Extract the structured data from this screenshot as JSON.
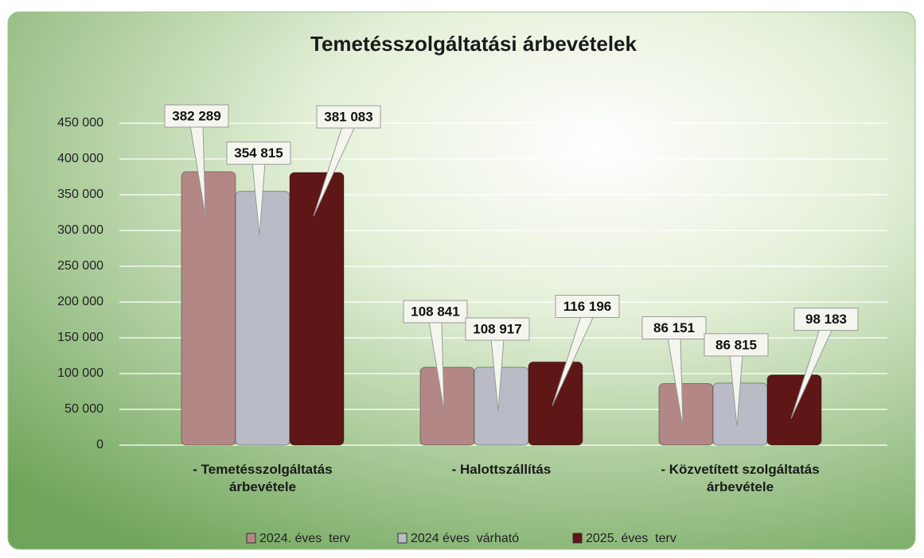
{
  "chart_data": {
    "type": "bar",
    "title": "Temetésszolgáltatási árbevételek",
    "categories": [
      "- Temetésszolgáltatás árbevétele",
      "- Halottszállítás",
      "- Közvetített szolgáltatás árbevétele"
    ],
    "series": [
      {
        "name": "2024. éves  terv",
        "color": "#b38785",
        "values": [
          382289,
          108841,
          86151
        ],
        "value_labels": [
          "382 289",
          "108 841",
          "86 151"
        ]
      },
      {
        "name": "2024 éves  várható",
        "color": "#b9bcc6",
        "values": [
          354815,
          108917,
          86815
        ],
        "value_labels": [
          "354 815",
          "108 917",
          "86 815"
        ]
      },
      {
        "name": "2025. éves  terv",
        "color": "#5e1616",
        "values": [
          381083,
          116196,
          98183
        ],
        "value_labels": [
          "381 083",
          "116 196",
          "98 183"
        ]
      }
    ],
    "ylim": [
      0,
      450000
    ],
    "yticks": [
      0,
      {
        "value": 50000,
        "label": "50 000"
      },
      {
        "value": 100000,
        "label": "100 000"
      },
      {
        "value": 150000,
        "label": "150 000"
      },
      {
        "value": 200000,
        "label": "200 000"
      },
      {
        "value": 250000,
        "label": "250 000"
      },
      {
        "value": 300000,
        "label": "300 000"
      },
      {
        "value": 350000,
        "label": "350 000"
      },
      {
        "value": 400000,
        "label": "400 000"
      },
      {
        "value": 450000,
        "label": "450 000"
      }
    ],
    "grid": true,
    "legend": "bottom"
  }
}
